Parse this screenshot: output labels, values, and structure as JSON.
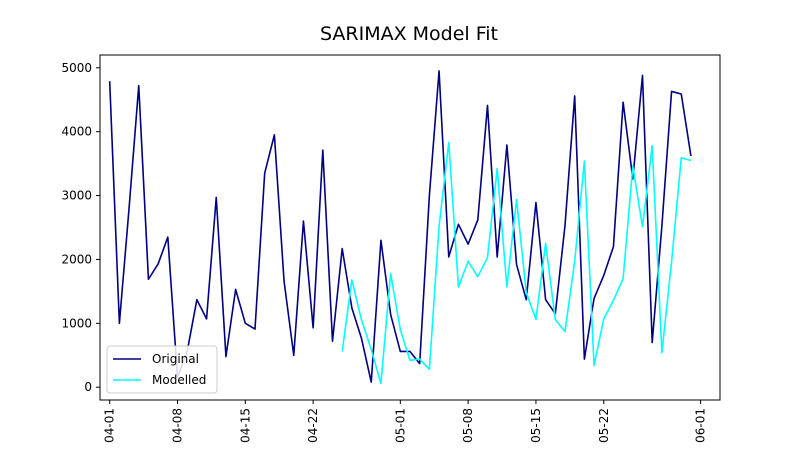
{
  "chart_data": {
    "type": "line",
    "title": "SARIMAX Model Fit",
    "xlabel": "",
    "ylabel": "",
    "ylim": [
      -200,
      5200
    ],
    "xlim_dates": [
      "2023-03-31",
      "2023-06-03"
    ],
    "x_ticks": [
      {
        "date": "2023-04-01",
        "label": "04-01"
      },
      {
        "date": "2023-04-08",
        "label": "04-08"
      },
      {
        "date": "2023-04-15",
        "label": "04-15"
      },
      {
        "date": "2023-04-22",
        "label": "04-22"
      },
      {
        "date": "2023-05-01",
        "label": "05-01"
      },
      {
        "date": "2023-05-08",
        "label": "05-08"
      },
      {
        "date": "2023-05-15",
        "label": "05-15"
      },
      {
        "date": "2023-05-22",
        "label": "05-22"
      },
      {
        "date": "2023-06-01",
        "label": "06-01"
      }
    ],
    "y_ticks": [
      0,
      1000,
      2000,
      3000,
      4000,
      5000
    ],
    "legend_position": "lower-left",
    "grid": false,
    "series": [
      {
        "name": "Original",
        "color": "#000080",
        "points": [
          [
            "2023-04-01",
            4790
          ],
          [
            "2023-04-02",
            1000
          ],
          [
            "2023-04-03",
            2800
          ],
          [
            "2023-04-04",
            4720
          ],
          [
            "2023-04-05",
            1690
          ],
          [
            "2023-04-06",
            1930
          ],
          [
            "2023-04-07",
            2350
          ],
          [
            "2023-04-08",
            160
          ],
          [
            "2023-04-09",
            560
          ],
          [
            "2023-04-10",
            1370
          ],
          [
            "2023-04-11",
            1070
          ],
          [
            "2023-04-12",
            2970
          ],
          [
            "2023-04-13",
            480
          ],
          [
            "2023-04-14",
            1530
          ],
          [
            "2023-04-15",
            1000
          ],
          [
            "2023-04-16",
            910
          ],
          [
            "2023-04-17",
            3350
          ],
          [
            "2023-04-18",
            3950
          ],
          [
            "2023-04-19",
            1660
          ],
          [
            "2023-04-20",
            500
          ],
          [
            "2023-04-21",
            2600
          ],
          [
            "2023-04-22",
            930
          ],
          [
            "2023-04-23",
            3710
          ],
          [
            "2023-04-24",
            720
          ],
          [
            "2023-04-25",
            2170
          ],
          [
            "2023-04-26",
            1240
          ],
          [
            "2023-04-27",
            760
          ],
          [
            "2023-04-28",
            80
          ],
          [
            "2023-04-29",
            2300
          ],
          [
            "2023-04-30",
            1140
          ],
          [
            "2023-05-01",
            560
          ],
          [
            "2023-05-02",
            560
          ],
          [
            "2023-05-03",
            370
          ],
          [
            "2023-05-04",
            3000
          ],
          [
            "2023-05-05",
            4950
          ],
          [
            "2023-05-06",
            2040
          ],
          [
            "2023-05-07",
            2550
          ],
          [
            "2023-05-08",
            2240
          ],
          [
            "2023-05-09",
            2620
          ],
          [
            "2023-05-10",
            4410
          ],
          [
            "2023-05-11",
            2040
          ],
          [
            "2023-05-12",
            3790
          ],
          [
            "2023-05-13",
            1920
          ],
          [
            "2023-05-14",
            1370
          ],
          [
            "2023-05-15",
            2890
          ],
          [
            "2023-05-16",
            1370
          ],
          [
            "2023-05-17",
            1150
          ],
          [
            "2023-05-18",
            2530
          ],
          [
            "2023-05-19",
            4560
          ],
          [
            "2023-05-20",
            440
          ],
          [
            "2023-05-21",
            1390
          ],
          [
            "2023-05-22",
            1750
          ],
          [
            "2023-05-23",
            2200
          ],
          [
            "2023-05-24",
            4460
          ],
          [
            "2023-05-25",
            3260
          ],
          [
            "2023-05-26",
            4880
          ],
          [
            "2023-05-27",
            700
          ],
          [
            "2023-05-28",
            2520
          ],
          [
            "2023-05-29",
            4630
          ],
          [
            "2023-05-30",
            4590
          ],
          [
            "2023-05-31",
            3620
          ]
        ]
      },
      {
        "name": "Modelled",
        "color": "#00ffff",
        "points": [
          [
            "2023-04-25",
            560
          ],
          [
            "2023-04-26",
            1680
          ],
          [
            "2023-04-27",
            1050
          ],
          [
            "2023-04-28",
            590
          ],
          [
            "2023-04-29",
            60
          ],
          [
            "2023-04-30",
            1780
          ],
          [
            "2023-05-01",
            900
          ],
          [
            "2023-05-02",
            420
          ],
          [
            "2023-05-03",
            440
          ],
          [
            "2023-05-04",
            280
          ],
          [
            "2023-05-05",
            2520
          ],
          [
            "2023-05-06",
            3830
          ],
          [
            "2023-05-07",
            1570
          ],
          [
            "2023-05-08",
            1970
          ],
          [
            "2023-05-09",
            1730
          ],
          [
            "2023-05-10",
            2030
          ],
          [
            "2023-05-11",
            3420
          ],
          [
            "2023-05-12",
            1570
          ],
          [
            "2023-05-13",
            2940
          ],
          [
            "2023-05-14",
            1480
          ],
          [
            "2023-05-15",
            1060
          ],
          [
            "2023-05-16",
            2250
          ],
          [
            "2023-05-17",
            1060
          ],
          [
            "2023-05-18",
            870
          ],
          [
            "2023-05-19",
            1970
          ],
          [
            "2023-05-20",
            3540
          ],
          [
            "2023-05-21",
            340
          ],
          [
            "2023-05-22",
            1070
          ],
          [
            "2023-05-23",
            1360
          ],
          [
            "2023-05-24",
            1700
          ],
          [
            "2023-05-25",
            3460
          ],
          [
            "2023-05-26",
            2510
          ],
          [
            "2023-05-27",
            3780
          ],
          [
            "2023-05-28",
            540
          ],
          [
            "2023-05-29",
            1960
          ],
          [
            "2023-05-30",
            3590
          ],
          [
            "2023-05-31",
            3550
          ]
        ]
      }
    ]
  }
}
